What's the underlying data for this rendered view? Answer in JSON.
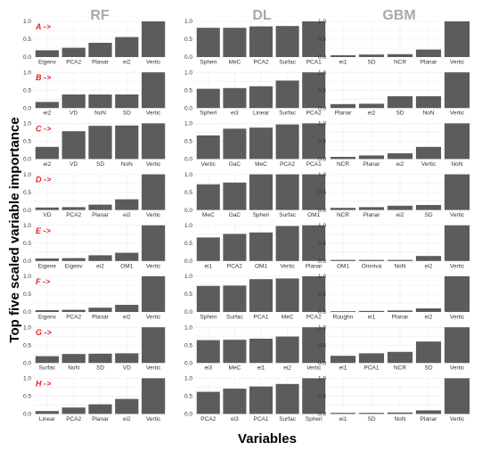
{
  "ylabel": "Top five scaled variable importance",
  "xlabel": "Variables",
  "colors": {
    "bar": "#5c5c5c",
    "row_label": "#e8202a",
    "column_title": "#a8a8a8",
    "grid": "#ececec"
  },
  "y_ticks": [
    "0.0",
    "0.5",
    "1.0"
  ],
  "chart_data": {
    "type": "bar",
    "ylim": [
      0,
      1
    ],
    "grid": true,
    "columns": [
      "RF",
      "DL",
      "GBM"
    ],
    "rows": [
      "A ->",
      "B ->",
      "C ->",
      "D ->",
      "E ->",
      "F ->",
      "G ->",
      "H ->"
    ],
    "panels": [
      [
        {
          "categories": [
            "Eigenv",
            "PCA2",
            "Planar",
            "ei2",
            "Vertic"
          ],
          "values": [
            0.19,
            0.26,
            0.4,
            0.56,
            1.0
          ]
        },
        {
          "categories": [
            "Spheri",
            "MeC",
            "PCA2",
            "Surfac",
            "PCA1"
          ],
          "values": [
            0.82,
            0.82,
            0.86,
            0.87,
            1.0
          ]
        },
        {
          "categories": [
            "ei1",
            "SD",
            "NCR",
            "Planar",
            "Vertic"
          ],
          "values": [
            0.05,
            0.07,
            0.08,
            0.21,
            1.0
          ]
        }
      ],
      [
        {
          "categories": [
            "ei2",
            "VD",
            "NoN",
            "SD",
            "Vertic"
          ],
          "values": [
            0.17,
            0.38,
            0.38,
            0.38,
            1.0
          ]
        },
        {
          "categories": [
            "Spheri",
            "ei3",
            "Linear",
            "Surfac",
            "PCA2"
          ],
          "values": [
            0.54,
            0.56,
            0.61,
            0.77,
            1.0
          ]
        },
        {
          "categories": [
            "Planar",
            "ei2",
            "SD",
            "NoN",
            "Vertic"
          ],
          "values": [
            0.11,
            0.12,
            0.33,
            0.33,
            1.0
          ]
        }
      ],
      [
        {
          "categories": [
            "ei2",
            "VD",
            "SD",
            "NoN",
            "Vertic"
          ],
          "values": [
            0.34,
            0.78,
            0.93,
            0.94,
            1.0
          ]
        },
        {
          "categories": [
            "Vertic",
            "GaC",
            "MeC",
            "PCA2",
            "PCA1"
          ],
          "values": [
            0.66,
            0.85,
            0.88,
            0.97,
            1.0
          ]
        },
        {
          "categories": [
            "NCR",
            "Planar",
            "ei2",
            "Vertic",
            "NoN"
          ],
          "values": [
            0.06,
            0.1,
            0.16,
            0.34,
            1.0
          ]
        }
      ],
      [
        {
          "categories": [
            "VD",
            "PCA2",
            "Planar",
            "ei2",
            "Vertic"
          ],
          "values": [
            0.07,
            0.08,
            0.15,
            0.3,
            1.0
          ]
        },
        {
          "categories": [
            "MeC",
            "GaC",
            "Spheri",
            "Surfac",
            "OM1"
          ],
          "values": [
            0.72,
            0.77,
            1.0,
            1.0,
            1.0
          ]
        },
        {
          "categories": [
            "NCR",
            "Planar",
            "ei2",
            "SD",
            "Vertic"
          ],
          "values": [
            0.06,
            0.08,
            0.12,
            0.14,
            1.0
          ]
        }
      ],
      [
        {
          "categories": [
            "Eigene",
            "Eigenv",
            "ei2",
            "OM1",
            "Vertic"
          ],
          "values": [
            0.07,
            0.08,
            0.16,
            0.23,
            1.0
          ]
        },
        {
          "categories": [
            "ei1",
            "PCA2",
            "OM1",
            "Vertic",
            "Planar"
          ],
          "values": [
            0.66,
            0.76,
            0.8,
            0.98,
            1.0
          ]
        },
        {
          "categories": [
            "OM1",
            "Omniva",
            "NoN",
            "ei2",
            "Vertic"
          ],
          "values": [
            0.03,
            0.03,
            0.03,
            0.14,
            1.0
          ]
        }
      ],
      [
        {
          "categories": [
            "Eigenv",
            "PCA2",
            "Planar",
            "ei2",
            "Vertic"
          ],
          "values": [
            0.05,
            0.06,
            0.12,
            0.2,
            1.0
          ]
        },
        {
          "categories": [
            "Spheri",
            "Surfac",
            "PCA1",
            "MeC",
            "PCA2"
          ],
          "values": [
            0.73,
            0.74,
            0.92,
            0.94,
            1.0
          ]
        },
        {
          "categories": [
            "Roughn",
            "ei1",
            "Planar",
            "ei2",
            "Vertic"
          ],
          "values": [
            0.02,
            0.03,
            0.04,
            0.1,
            1.0
          ]
        }
      ],
      [
        {
          "categories": [
            "Surfac",
            "NoN",
            "SD",
            "VD",
            "Vertic"
          ],
          "values": [
            0.19,
            0.25,
            0.26,
            0.27,
            1.0
          ]
        },
        {
          "categories": [
            "ei3",
            "MeC",
            "ei1",
            "ei2",
            "Vertic"
          ],
          "values": [
            0.64,
            0.65,
            0.68,
            0.74,
            1.0
          ]
        },
        {
          "categories": [
            "ei1",
            "PCA1",
            "NCR",
            "SD",
            "Vertic"
          ],
          "values": [
            0.2,
            0.27,
            0.31,
            0.6,
            1.0
          ]
        }
      ],
      [
        {
          "categories": [
            "Linear",
            "PCA2",
            "Planar",
            "ei2",
            "Vertic"
          ],
          "values": [
            0.08,
            0.18,
            0.27,
            0.42,
            1.0
          ]
        },
        {
          "categories": [
            "PCA2",
            "ei3",
            "PCA1",
            "Surfac",
            "Spheri"
          ],
          "values": [
            0.62,
            0.71,
            0.77,
            0.84,
            1.0
          ]
        },
        {
          "categories": [
            "ei1",
            "SD",
            "NoN",
            "Planar",
            "Vertic"
          ],
          "values": [
            0.03,
            0.03,
            0.04,
            0.1,
            1.0
          ]
        }
      ]
    ]
  }
}
